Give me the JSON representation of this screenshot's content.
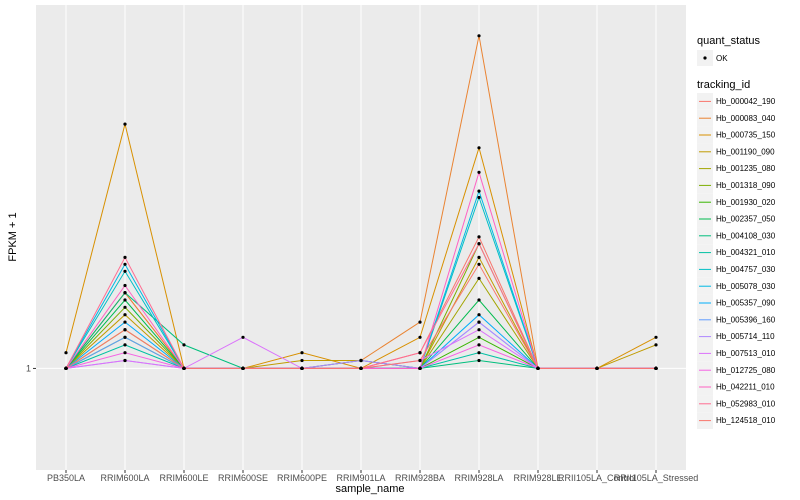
{
  "chart_data": {
    "type": "line",
    "title": "",
    "xlabel": "sample_name",
    "ylabel": "FPKM + 1",
    "y_scale": "log10",
    "ylim": [
      0.88,
      1.58
    ],
    "y_ticks": [
      1
    ],
    "y_tick_labels": [
      "1"
    ],
    "categories": [
      "PB350LA",
      "RRIM600LA",
      "RRIM600LE",
      "RRIM600SE",
      "RRIM600PE",
      "RRIM901LA",
      "RRIM928BA",
      "RRIM928LA",
      "RRIM928LE",
      "RRII105LA_Control",
      "RRII105LA_Stressed"
    ],
    "x_tick_labels": [
      "PB350LA",
      "RRIM600LA",
      "RRIM600LE",
      "RRIM600SE",
      "RRIM600PE",
      "RRIM901LA",
      "RRIM928BA",
      "RRIM928LA",
      "RRIM928LE",
      "RRII105LA_Control",
      "RRII105LA_Stressed"
    ],
    "legend_quant": {
      "title": "quant_status",
      "items": [
        "OK"
      ]
    },
    "legend_title": "tracking_id",
    "series": [
      {
        "name": "Hb_000042_190",
        "color": "#F8766D",
        "values": [
          1,
          1.1,
          1,
          1,
          1,
          1,
          1.02,
          1.18,
          1,
          1,
          1
        ]
      },
      {
        "name": "Hb_000083_040",
        "color": "#EA8331",
        "values": [
          1,
          1.1,
          1,
          1,
          1,
          1.01,
          1.06,
          1.52,
          1,
          1,
          1
        ]
      },
      {
        "name": "Hb_000735_150",
        "color": "#D89000",
        "values": [
          1.02,
          1.36,
          1,
          1,
          1.02,
          1,
          1.04,
          1.32,
          1,
          1,
          1.04
        ]
      },
      {
        "name": "Hb_001190_090",
        "color": "#C09B00",
        "values": [
          1,
          1.07,
          1,
          1,
          1.01,
          1.01,
          1,
          1.15,
          1,
          1,
          1.03
        ]
      },
      {
        "name": "Hb_001235_080",
        "color": "#A3A500",
        "values": [
          1,
          1.05,
          1,
          1,
          1,
          1,
          1,
          1.12,
          1,
          1,
          1
        ]
      },
      {
        "name": "Hb_001318_090",
        "color": "#7CAE00",
        "values": [
          1,
          1.08,
          1,
          1,
          1,
          1,
          1,
          1.17,
          1,
          1,
          1
        ]
      },
      {
        "name": "Hb_001930_020",
        "color": "#39B600",
        "values": [
          1,
          1.04,
          1,
          1,
          1,
          1,
          1,
          1.04,
          1,
          1,
          1
        ]
      },
      {
        "name": "Hb_002357_050",
        "color": "#00BB4E",
        "values": [
          1,
          1.09,
          1,
          1,
          1,
          1,
          1,
          1.09,
          1,
          1,
          1
        ]
      },
      {
        "name": "Hb_004108_030",
        "color": "#00BF7D",
        "values": [
          1,
          1.1,
          1.03,
          1,
          1,
          1,
          1,
          1.01,
          1,
          1,
          1
        ]
      },
      {
        "name": "Hb_004321_010",
        "color": "#00C1A3",
        "values": [
          1,
          1.03,
          1,
          1,
          1,
          1.01,
          1,
          1.02,
          1,
          1,
          1
        ]
      },
      {
        "name": "Hb_004757_030",
        "color": "#00BFC4",
        "values": [
          1,
          1.13,
          1,
          1,
          1,
          1,
          1,
          1.24,
          1,
          1,
          1
        ]
      },
      {
        "name": "Hb_005078_030",
        "color": "#00B9E3",
        "values": [
          1,
          1.14,
          1,
          1,
          1,
          1,
          1,
          1.25,
          1,
          1,
          1
        ]
      },
      {
        "name": "Hb_005357_090",
        "color": "#00ADFA",
        "values": [
          1,
          1.06,
          1,
          1,
          1,
          1,
          1,
          1.07,
          1,
          1,
          1
        ]
      },
      {
        "name": "Hb_005396_160",
        "color": "#619CFF",
        "values": [
          1,
          1.04,
          1,
          1,
          1,
          1,
          1,
          1.06,
          1,
          1,
          1
        ]
      },
      {
        "name": "Hb_005714_110",
        "color": "#AE87FF",
        "values": [
          1,
          1.01,
          1,
          1,
          1,
          1.01,
          1,
          1.06,
          1,
          1,
          1
        ]
      },
      {
        "name": "Hb_007513_010",
        "color": "#DB72FB",
        "values": [
          1,
          1.01,
          1,
          1.04,
          1,
          1,
          1.01,
          1.05,
          1,
          1,
          1
        ]
      },
      {
        "name": "Hb_012725_080",
        "color": "#F564E3",
        "values": [
          1,
          1.02,
          1,
          1,
          1,
          1,
          1,
          1.03,
          1,
          1,
          1
        ]
      },
      {
        "name": "Hb_042211_010",
        "color": "#FF61C3",
        "values": [
          1,
          1.11,
          1,
          1,
          1,
          1,
          1,
          1.28,
          1,
          1,
          1
        ]
      },
      {
        "name": "Hb_052983_010",
        "color": "#FF6C91",
        "values": [
          1,
          1.15,
          1,
          1,
          1,
          1,
          1.02,
          1.17,
          1,
          1,
          1
        ]
      },
      {
        "name": "Hb_124518_010",
        "color": "#F8766D",
        "values": [
          1,
          1.05,
          1,
          1,
          1,
          1,
          1.01,
          1.14,
          1,
          1,
          1
        ]
      }
    ]
  }
}
